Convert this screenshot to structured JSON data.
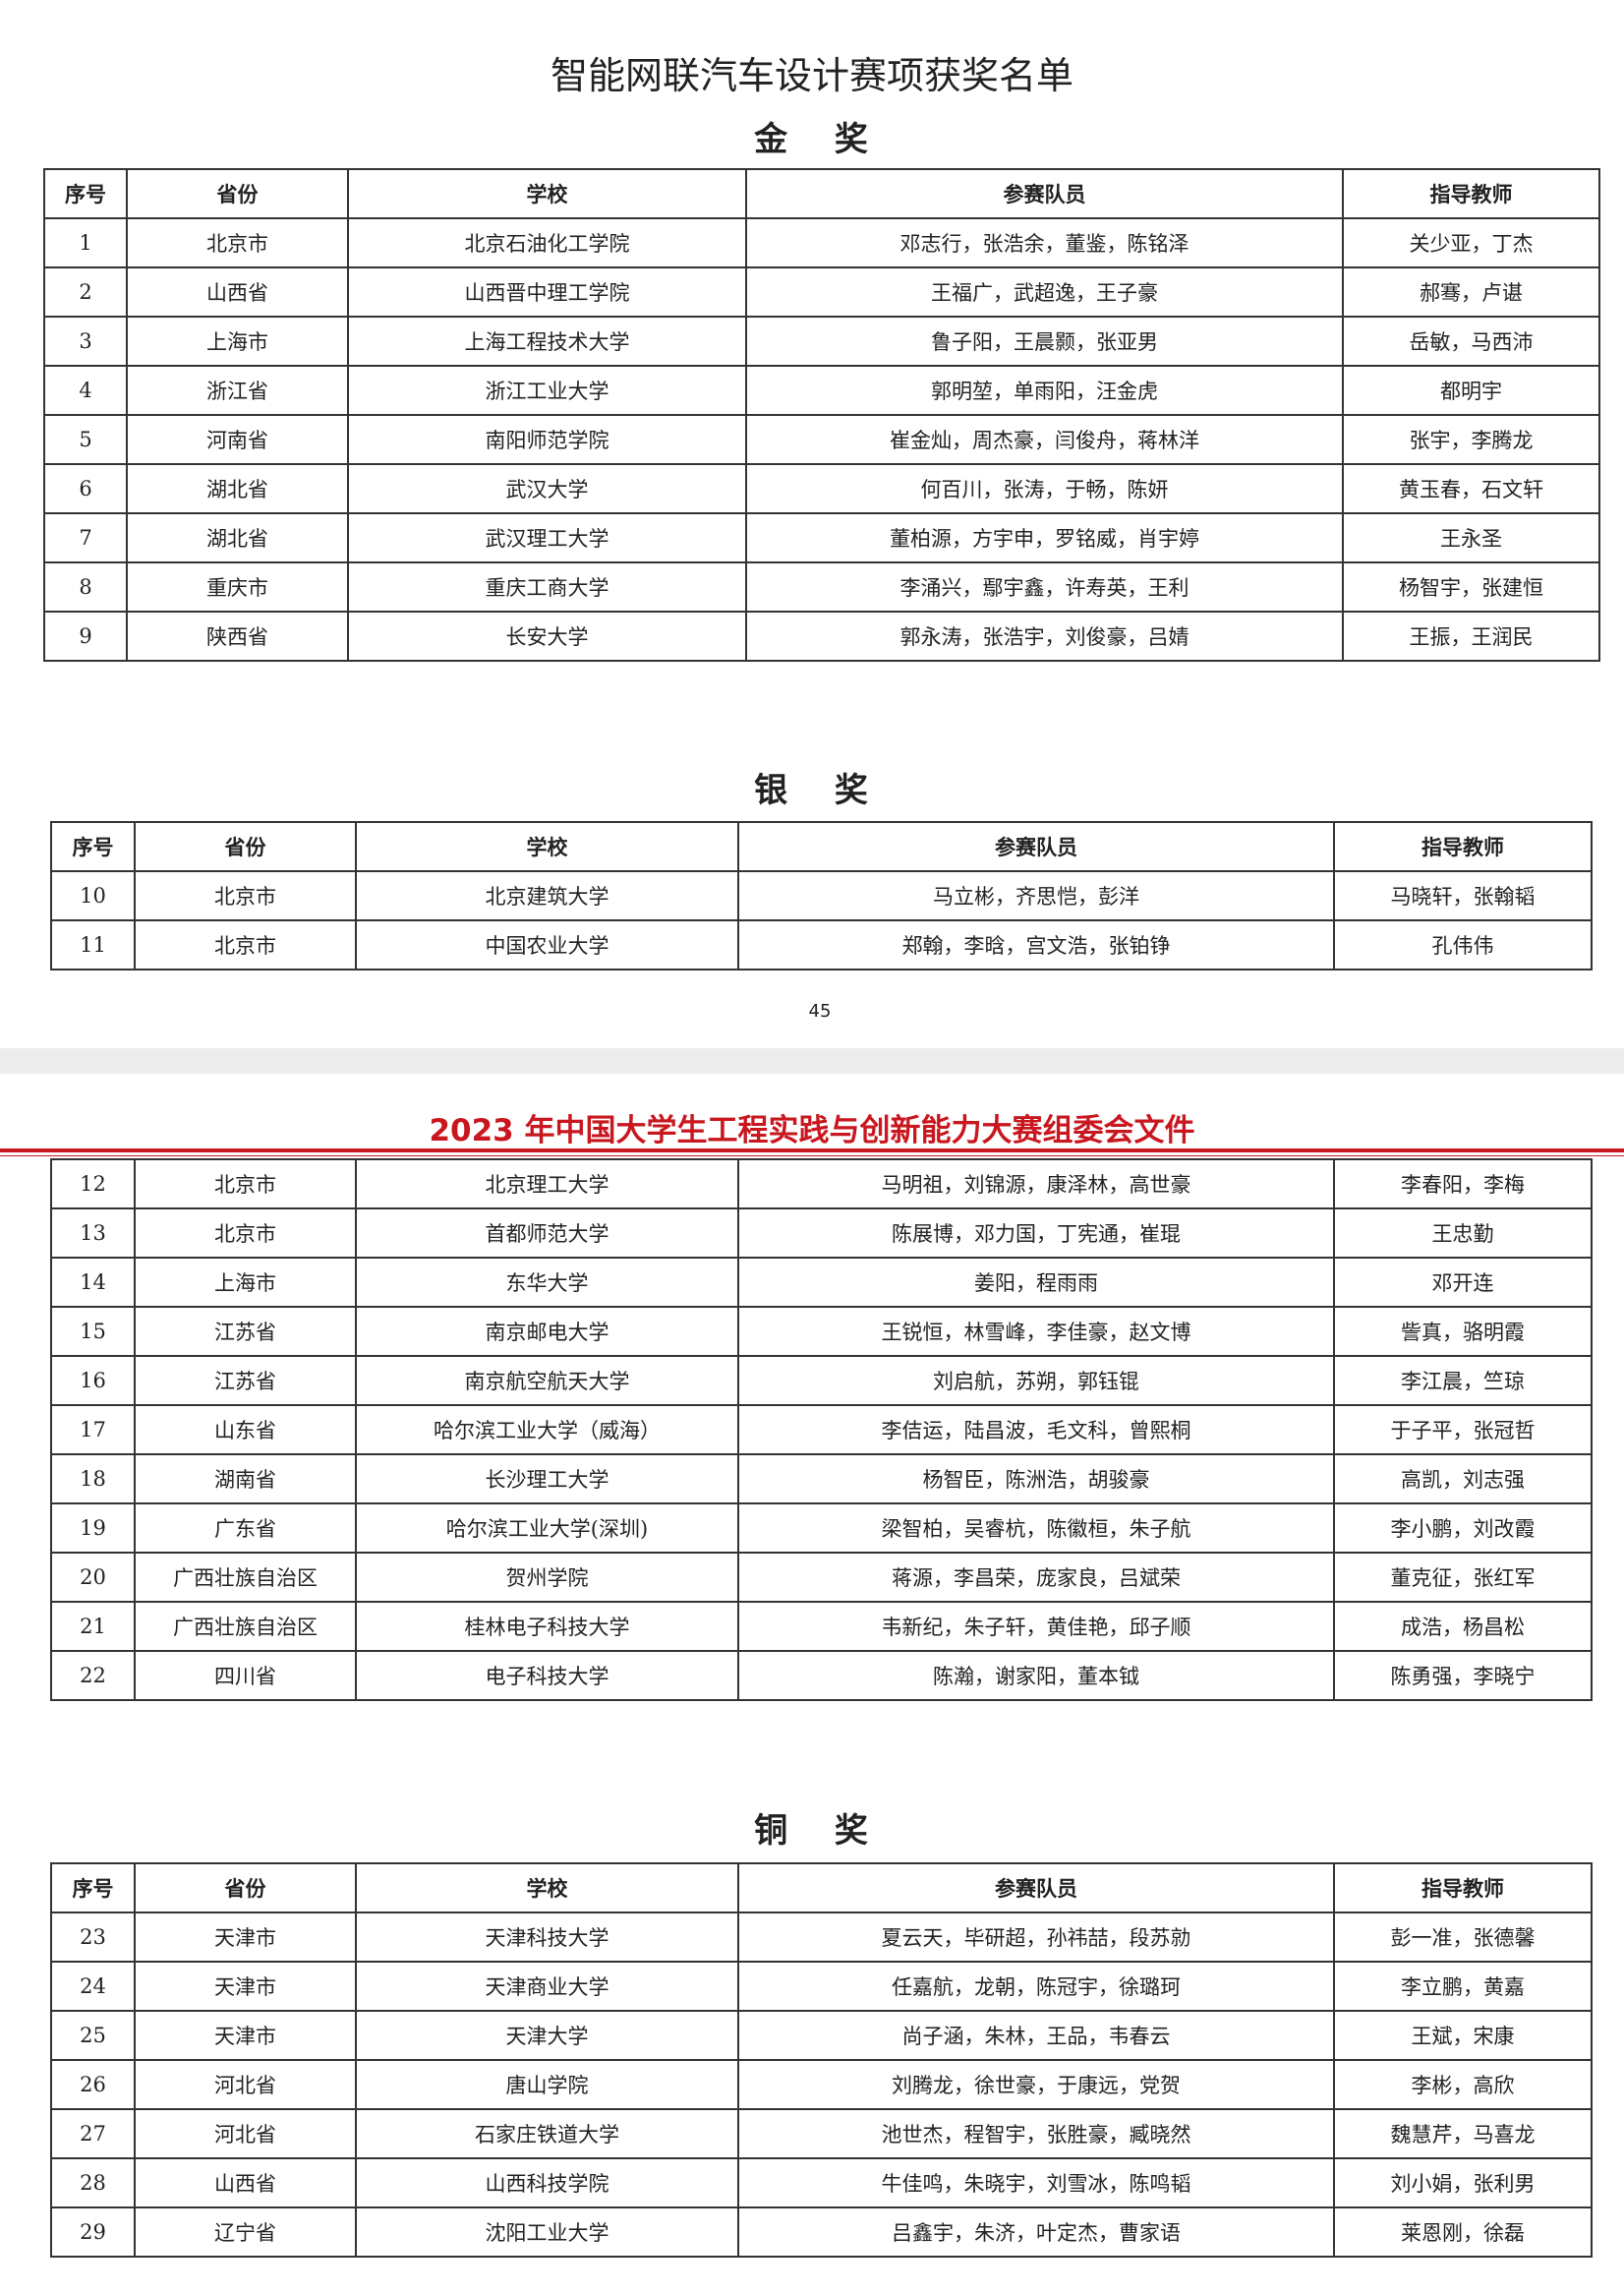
{
  "title": "智能网联汽车设计赛项获奖名单",
  "headers": [
    "序号",
    "省份",
    "学校",
    "参赛队员",
    "指导教师"
  ],
  "gold": {
    "label": "金 奖",
    "rows": [
      [
        "1",
        "北京市",
        "北京石油化工学院",
        "邓志行，张浩余，董鉴，陈铭泽",
        "关少亚，丁杰"
      ],
      [
        "2",
        "山西省",
        "山西晋中理工学院",
        "王福广，武超逸，王子豪",
        "郝骞，卢谌"
      ],
      [
        "3",
        "上海市",
        "上海工程技术大学",
        "鲁子阳，王晨颢，张亚男",
        "岳敏，马西沛"
      ],
      [
        "4",
        "浙江省",
        "浙江工业大学",
        "郭明堃，单雨阳，汪金虎",
        "都明宇"
      ],
      [
        "5",
        "河南省",
        "南阳师范学院",
        "崔金灿，周杰豪，闫俊舟，蒋林洋",
        "张宇，李腾龙"
      ],
      [
        "6",
        "湖北省",
        "武汉大学",
        "何百川，张涛，于畅，陈妍",
        "黄玉春，石文轩"
      ],
      [
        "7",
        "湖北省",
        "武汉理工大学",
        "董柏源，方宇申，罗铭威，肖宇婷",
        "王永圣"
      ],
      [
        "8",
        "重庆市",
        "重庆工商大学",
        "李涌兴，鄢宇鑫，许寿英，王利",
        "杨智宇，张建恒"
      ],
      [
        "9",
        "陕西省",
        "长安大学",
        "郭永涛，张浩宇，刘俊豪，吕婧",
        "王振，王润民"
      ]
    ]
  },
  "silver": {
    "label": "银 奖",
    "rows": [
      [
        "10",
        "北京市",
        "北京建筑大学",
        "马立彬，齐思恺，彭洋",
        "马晓轩，张翰韬"
      ],
      [
        "11",
        "北京市",
        "中国农业大学",
        "郑翰，李晗，宫文浩，张铂铮",
        "孔伟伟"
      ]
    ],
    "continued_rows": [
      [
        "12",
        "北京市",
        "北京理工大学",
        "马明祖，刘锦源，康泽林，高世豪",
        "李春阳，李梅"
      ],
      [
        "13",
        "北京市",
        "首都师范大学",
        "陈展博，邓力国，丁宪通，崔琨",
        "王忠勤"
      ],
      [
        "14",
        "上海市",
        "东华大学",
        "姜阳，程雨雨",
        "邓开连"
      ],
      [
        "15",
        "江苏省",
        "南京邮电大学",
        "王锐恒，林雪峰，李佳豪，赵文博",
        "訾真，骆明霞"
      ],
      [
        "16",
        "江苏省",
        "南京航空航天大学",
        "刘启航，苏朔，郭钰锟",
        "李江晨，竺琼"
      ],
      [
        "17",
        "山东省",
        "哈尔滨工业大学（威海）",
        "李佶运，陆昌波，毛文科，曾熙桐",
        "于子平，张冠哲"
      ],
      [
        "18",
        "湖南省",
        "长沙理工大学",
        "杨智臣，陈洲浩，胡骏豪",
        "高凯，刘志强"
      ],
      [
        "19",
        "广东省",
        "哈尔滨工业大学(深圳)",
        "梁智柏，吴睿杭，陈徽桓，朱子航",
        "李小鹏，刘改霞"
      ],
      [
        "20",
        "广西壮族自治区",
        "贺州学院",
        "蒋源，李昌荣，庞家良，吕斌荣",
        "董克征，张红军"
      ],
      [
        "21",
        "广西壮族自治区",
        "桂林电子科技大学",
        "韦新纪，朱子轩，黄佳艳，邱子顺",
        "成浩，杨昌松"
      ],
      [
        "22",
        "四川省",
        "电子科技大学",
        "陈瀚，谢家阳，董本钺",
        "陈勇强，李晓宁"
      ]
    ]
  },
  "bronze": {
    "label": "铜 奖",
    "rows": [
      [
        "23",
        "天津市",
        "天津科技大学",
        "夏云天，毕研超，孙祎喆，段苏勍",
        "彭一准，张德馨"
      ],
      [
        "24",
        "天津市",
        "天津商业大学",
        "任嘉航，龙朝，陈冠宇，徐璐珂",
        "李立鹏，黄嘉"
      ],
      [
        "25",
        "天津市",
        "天津大学",
        "尚子涵，朱林，王品，韦春云",
        "王斌，宋康"
      ],
      [
        "26",
        "河北省",
        "唐山学院",
        "刘腾龙，徐世豪，于康远，党贺",
        "李彬，高欣"
      ],
      [
        "27",
        "河北省",
        "石家庄铁道大学",
        "池世杰，程智宇，张胜豪，臧晓然",
        "魏慧芹，马喜龙"
      ],
      [
        "28",
        "山西省",
        "山西科技学院",
        "牛佳鸣，朱晓宇，刘雪冰，陈鸣韬",
        "刘小娟，张利男"
      ],
      [
        "29",
        "辽宁省",
        "沈阳工业大学",
        "吕鑫宇，朱济，叶定杰，曹家语",
        "莱恩刚，徐磊"
      ]
    ]
  },
  "page_number": "45",
  "letterhead": "2023 年中国大学生工程实践与创新能力大赛组委会文件",
  "colors": {
    "letterhead_red": "#c8171e"
  }
}
